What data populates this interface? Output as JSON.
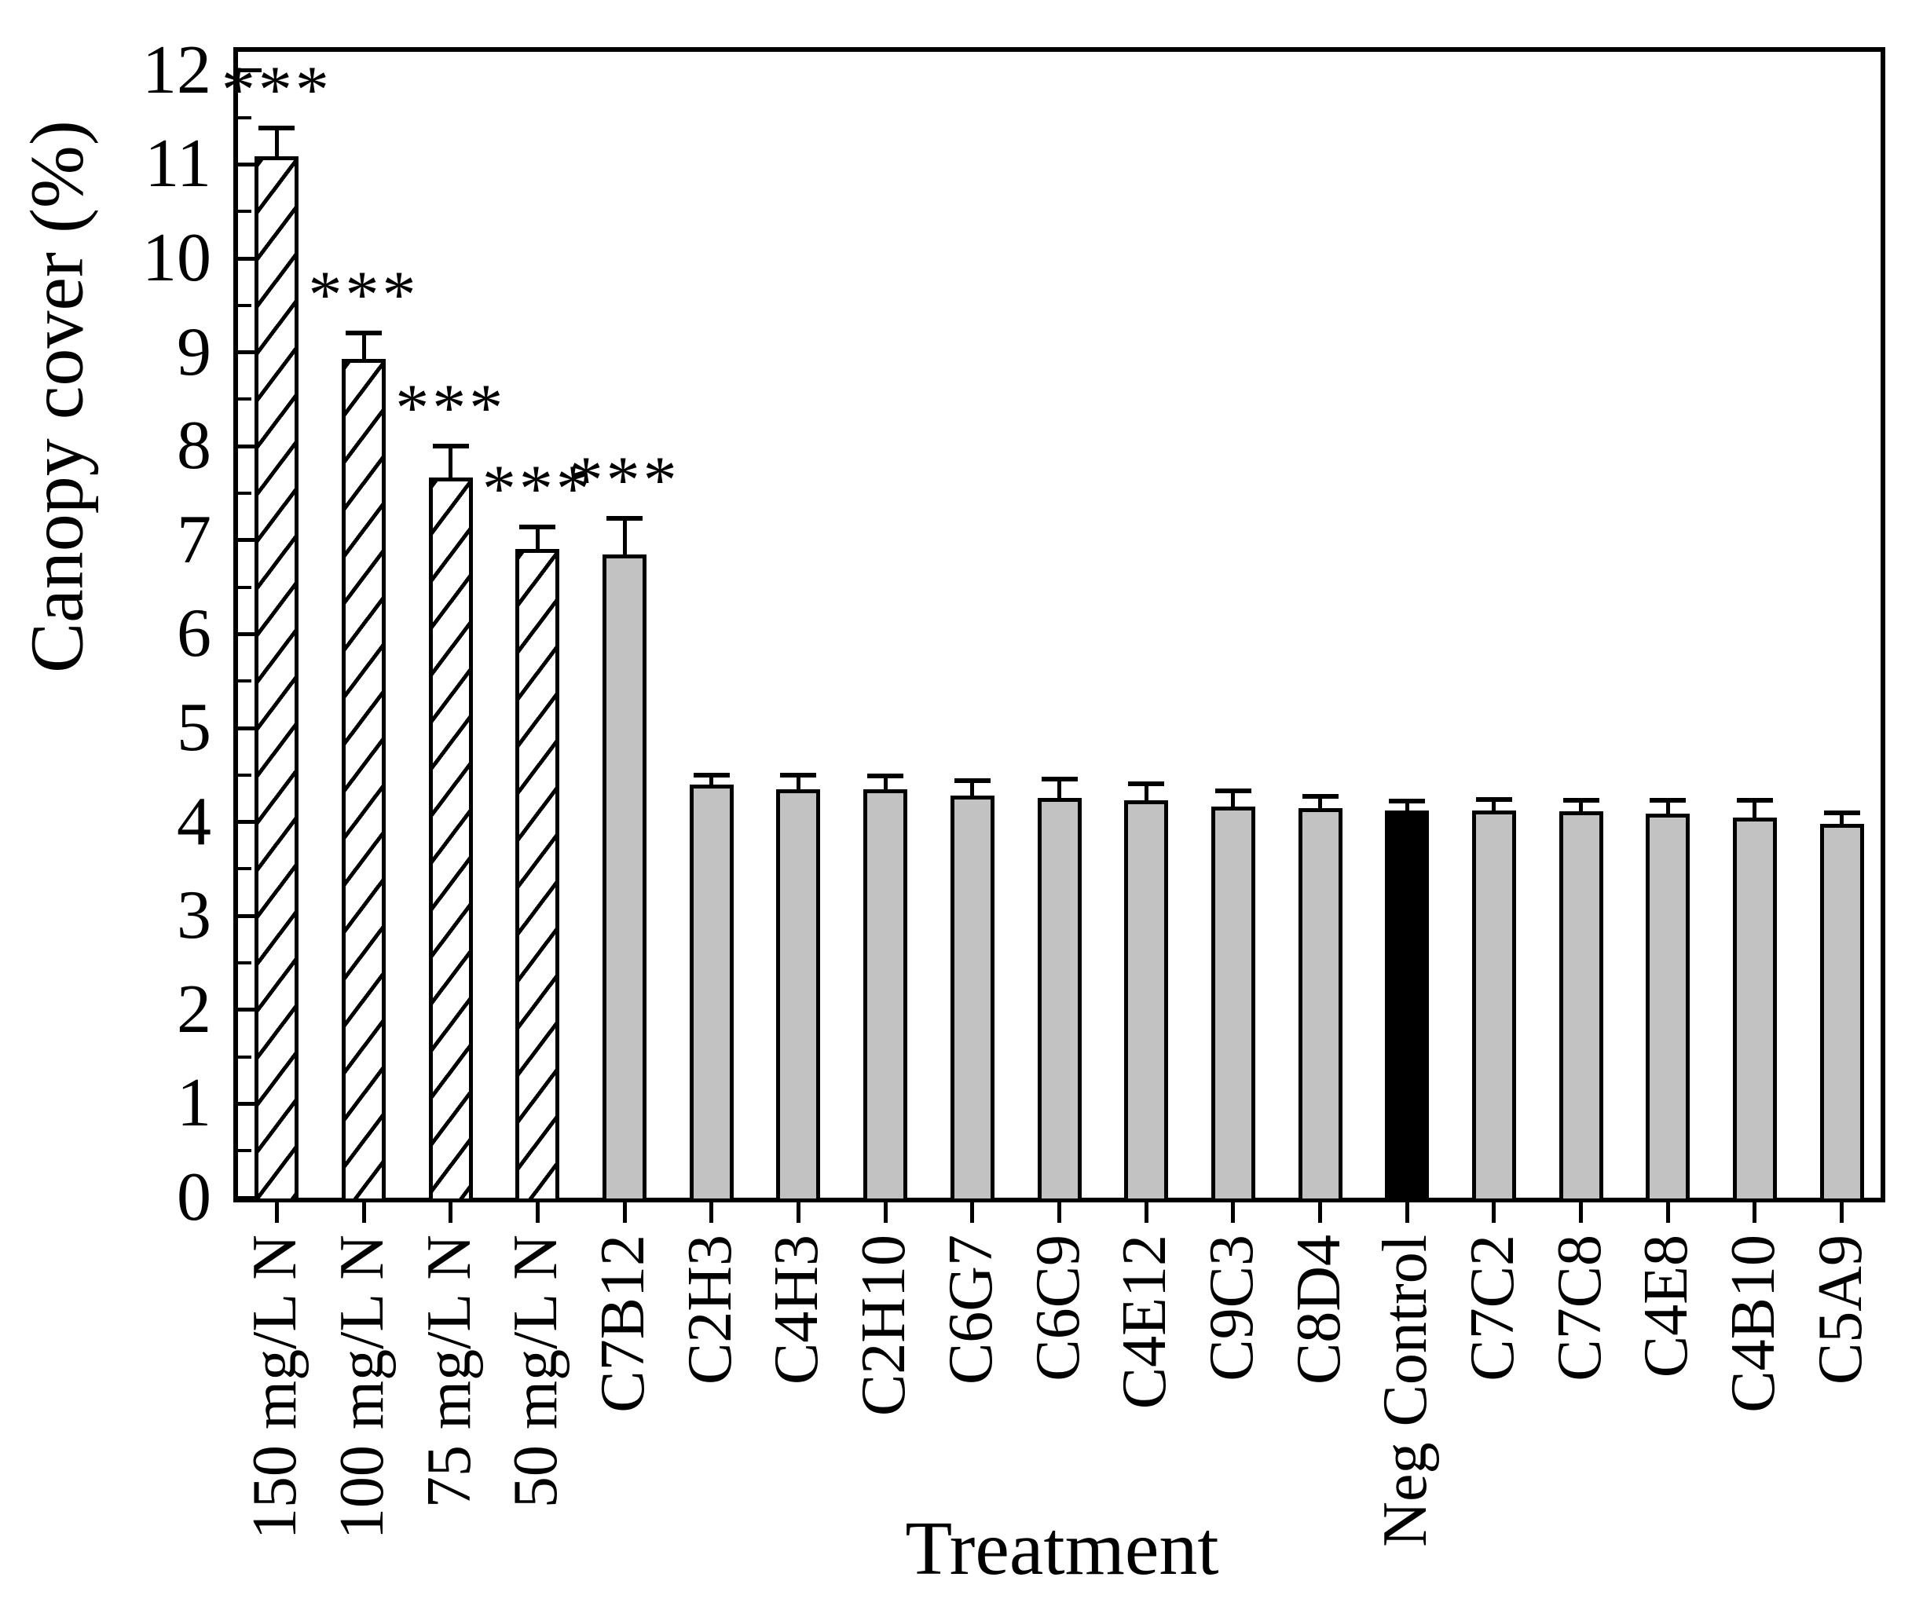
{
  "chart_data": {
    "type": "bar",
    "title": "",
    "xlabel": "Treatment",
    "ylabel": "Canopy cover (%)",
    "ylim": [
      0,
      12.25
    ],
    "yticks": [
      0,
      1,
      2,
      3,
      4,
      5,
      6,
      7,
      8,
      9,
      10,
      11,
      12
    ],
    "minor_tick_step": 0.5,
    "grid": false,
    "legend": null,
    "significance_marker": "***",
    "bars": [
      {
        "label": "150 mg/L N",
        "value": 11.09,
        "error_up": 0.3,
        "style": "hatched",
        "sig": "***"
      },
      {
        "label": "100 mg/L N",
        "value": 8.93,
        "error_up": 0.28,
        "style": "hatched",
        "sig": "***"
      },
      {
        "label": "75 mg/L N",
        "value": 7.67,
        "error_up": 0.33,
        "style": "hatched",
        "sig": "***"
      },
      {
        "label": "50 mg/L N",
        "value": 6.91,
        "error_up": 0.23,
        "style": "hatched",
        "sig": "***"
      },
      {
        "label": "C7B12",
        "value": 6.85,
        "error_up": 0.38,
        "style": "gray",
        "sig": "***"
      },
      {
        "label": "C2H3",
        "value": 4.4,
        "error_up": 0.1,
        "style": "gray",
        "sig": ""
      },
      {
        "label": "C4H3",
        "value": 4.35,
        "error_up": 0.15,
        "style": "gray",
        "sig": ""
      },
      {
        "label": "C2H10",
        "value": 4.35,
        "error_up": 0.14,
        "style": "gray",
        "sig": ""
      },
      {
        "label": "C6G7",
        "value": 4.28,
        "error_up": 0.16,
        "style": "gray",
        "sig": ""
      },
      {
        "label": "C6C9",
        "value": 4.26,
        "error_up": 0.2,
        "style": "gray",
        "sig": ""
      },
      {
        "label": "C4E12",
        "value": 4.23,
        "error_up": 0.18,
        "style": "gray",
        "sig": ""
      },
      {
        "label": "C9C3",
        "value": 4.16,
        "error_up": 0.17,
        "style": "gray",
        "sig": ""
      },
      {
        "label": "C8D4",
        "value": 4.15,
        "error_up": 0.12,
        "style": "gray",
        "sig": ""
      },
      {
        "label": "Neg Control",
        "value": 4.12,
        "error_up": 0.1,
        "style": "black",
        "sig": ""
      },
      {
        "label": "C7C2",
        "value": 4.12,
        "error_up": 0.12,
        "style": "gray",
        "sig": ""
      },
      {
        "label": "C7C8",
        "value": 4.11,
        "error_up": 0.12,
        "style": "gray",
        "sig": ""
      },
      {
        "label": "C4E8",
        "value": 4.09,
        "error_up": 0.14,
        "style": "gray",
        "sig": ""
      },
      {
        "label": "C4B10",
        "value": 4.05,
        "error_up": 0.18,
        "style": "gray",
        "sig": ""
      },
      {
        "label": "C5A9",
        "value": 3.98,
        "error_up": 0.12,
        "style": "gray",
        "sig": ""
      }
    ],
    "colors": {
      "gray_fill": "#c2c2c2",
      "black_fill": "#000000",
      "hatch_line": "#000000",
      "axis": "#000000",
      "background": "#ffffff"
    }
  }
}
